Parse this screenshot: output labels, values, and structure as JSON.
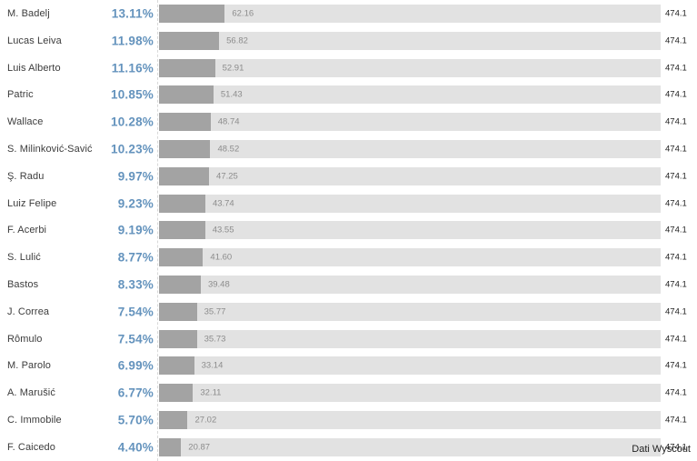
{
  "chart": {
    "source_label": "Dati Wyscout",
    "colors": {
      "bar_fill": "#a3a3a3",
      "bar_track": "#e2e2e2",
      "percent_text": "#6493bd",
      "name_text": "#3c3c3c",
      "bar_value_text": "#8c8c8c",
      "total_text": "#1f1f1f"
    }
  },
  "chart_data": {
    "type": "bar",
    "orientation": "horizontal",
    "title": "",
    "xlabel": "",
    "ylabel": "",
    "xlim": [
      0,
      474.1
    ],
    "grid": "dashed-left-axis-only",
    "legend": "none",
    "total": 474.1,
    "source": "Dati Wyscout",
    "categories": [
      "M. Badelj",
      "Lucas Leiva",
      "Luis Alberto",
      "Patric",
      "Wallace",
      "S. Milinković-Savić",
      "Ş. Radu",
      "Luiz Felipe",
      "F. Acerbi",
      "S. Lulić",
      "Bastos",
      "J. Correa",
      "Rômulo",
      "M. Parolo",
      "A. Marušić",
      "C. Immobile",
      "F. Caicedo"
    ],
    "series": [
      {
        "name": "share_percent",
        "values": [
          13.11,
          11.98,
          11.16,
          10.85,
          10.28,
          10.23,
          9.97,
          9.23,
          9.19,
          8.77,
          8.33,
          7.54,
          7.54,
          6.99,
          6.77,
          5.7,
          4.4
        ]
      },
      {
        "name": "value",
        "values": [
          62.16,
          56.82,
          52.91,
          51.43,
          48.74,
          48.52,
          47.25,
          43.74,
          43.55,
          41.6,
          39.48,
          35.77,
          35.73,
          33.14,
          32.11,
          27.02,
          20.87
        ]
      },
      {
        "name": "total",
        "values": [
          474.1,
          474.1,
          474.1,
          474.1,
          474.1,
          474.1,
          474.1,
          474.1,
          474.1,
          474.1,
          474.1,
          474.1,
          474.1,
          474.1,
          474.1,
          474.1,
          474.1
        ]
      }
    ]
  },
  "rows": [
    {
      "name": "M. Badelj",
      "pct_label": "13.11%",
      "pct": 13.11,
      "value_label": "62.16",
      "total_label": "474.1"
    },
    {
      "name": "Lucas Leiva",
      "pct_label": "11.98%",
      "pct": 11.98,
      "value_label": "56.82",
      "total_label": "474.1"
    },
    {
      "name": "Luis Alberto",
      "pct_label": "11.16%",
      "pct": 11.16,
      "value_label": "52.91",
      "total_label": "474.1"
    },
    {
      "name": "Patric",
      "pct_label": "10.85%",
      "pct": 10.85,
      "value_label": "51.43",
      "total_label": "474.1"
    },
    {
      "name": "Wallace",
      "pct_label": "10.28%",
      "pct": 10.28,
      "value_label": "48.74",
      "total_label": "474.1"
    },
    {
      "name": "S. Milinković-Savić",
      "pct_label": "10.23%",
      "pct": 10.23,
      "value_label": "48.52",
      "total_label": "474.1"
    },
    {
      "name": "Ş. Radu",
      "pct_label": "9.97%",
      "pct": 9.97,
      "value_label": "47.25",
      "total_label": "474.1"
    },
    {
      "name": "Luiz Felipe",
      "pct_label": "9.23%",
      "pct": 9.23,
      "value_label": "43.74",
      "total_label": "474.1"
    },
    {
      "name": "F. Acerbi",
      "pct_label": "9.19%",
      "pct": 9.19,
      "value_label": "43.55",
      "total_label": "474.1"
    },
    {
      "name": "S. Lulić",
      "pct_label": "8.77%",
      "pct": 8.77,
      "value_label": "41.60",
      "total_label": "474.1"
    },
    {
      "name": "Bastos",
      "pct_label": "8.33%",
      "pct": 8.33,
      "value_label": "39.48",
      "total_label": "474.1"
    },
    {
      "name": "J. Correa",
      "pct_label": "7.54%",
      "pct": 7.54,
      "value_label": "35.77",
      "total_label": "474.1"
    },
    {
      "name": "Rômulo",
      "pct_label": "7.54%",
      "pct": 7.54,
      "value_label": "35.73",
      "total_label": "474.1"
    },
    {
      "name": "M. Parolo",
      "pct_label": "6.99%",
      "pct": 6.99,
      "value_label": "33.14",
      "total_label": "474.1"
    },
    {
      "name": "A. Marušić",
      "pct_label": "6.77%",
      "pct": 6.77,
      "value_label": "32.11",
      "total_label": "474.1"
    },
    {
      "name": "C. Immobile",
      "pct_label": "5.70%",
      "pct": 5.7,
      "value_label": "27.02",
      "total_label": "474.1"
    },
    {
      "name": "F. Caicedo",
      "pct_label": "4.40%",
      "pct": 4.4,
      "value_label": "20.87",
      "total_label": "474.1"
    }
  ]
}
